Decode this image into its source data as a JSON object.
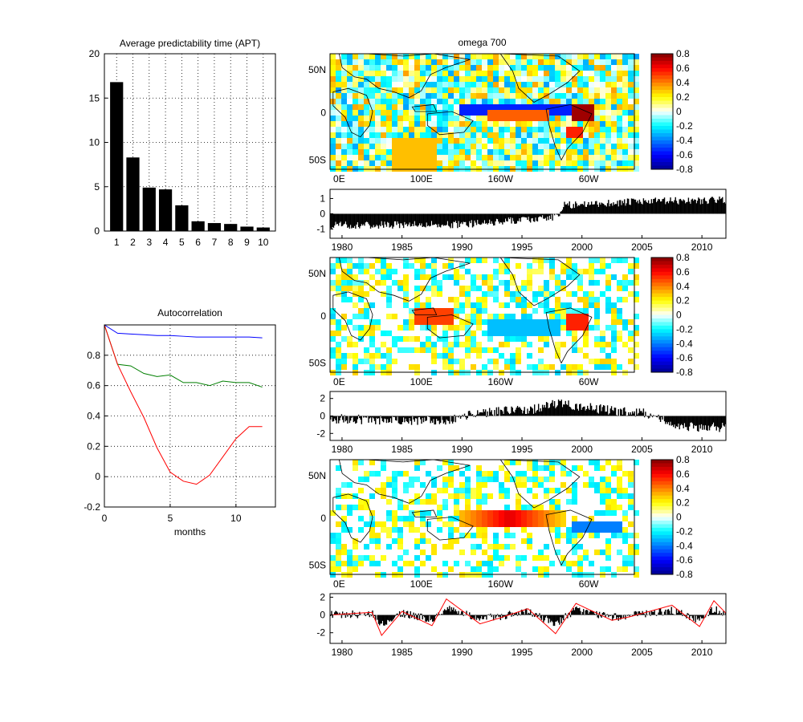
{
  "chart_data": [
    {
      "type": "bar",
      "title": "Average predictability time (APT)",
      "categories": [
        "1",
        "2",
        "3",
        "4",
        "5",
        "6",
        "7",
        "8",
        "9",
        "10"
      ],
      "values": [
        16.8,
        8.3,
        4.9,
        4.7,
        2.9,
        1.1,
        0.9,
        0.8,
        0.5,
        0.4
      ],
      "ylim": [
        0,
        20
      ],
      "yticks": [
        "0",
        "5",
        "10",
        "15",
        "20"
      ],
      "grid": true
    },
    {
      "type": "line",
      "title": "Autocorrelation",
      "xlabel": "months",
      "xlim": [
        0,
        13
      ],
      "ylim": [
        -0.2,
        1.0
      ],
      "xticks": [
        "0",
        "5",
        "10"
      ],
      "yticks": [
        "-0.2",
        "0",
        "0.2",
        "0.4",
        "0.6",
        "0.8"
      ],
      "grid": true,
      "x": [
        0,
        1,
        2,
        3,
        4,
        5,
        6,
        7,
        8,
        9,
        10,
        11,
        12
      ],
      "series": [
        {
          "color": "#0000ff",
          "values": [
            1.0,
            0.945,
            0.94,
            0.935,
            0.93,
            0.93,
            0.925,
            0.92,
            0.92,
            0.92,
            0.92,
            0.92,
            0.915
          ]
        },
        {
          "color": "#007f00",
          "values": [
            1.0,
            0.74,
            0.73,
            0.68,
            0.66,
            0.67,
            0.62,
            0.62,
            0.6,
            0.63,
            0.62,
            0.62,
            0.59
          ]
        },
        {
          "color": "#ff0000",
          "values": [
            1.0,
            0.74,
            0.56,
            0.39,
            0.19,
            0.03,
            -0.03,
            -0.05,
            0.01,
            0.13,
            0.25,
            0.33,
            0.33
          ]
        }
      ]
    },
    {
      "type": "heatmap",
      "title": "omega 700",
      "lat_ticks": [
        "50N",
        "0",
        "50S"
      ],
      "lon_ticks": [
        "0E",
        "100E",
        "160W",
        "60W"
      ],
      "colorbar_ticks": [
        "0.8",
        "0.6",
        "0.4",
        "0.2",
        "0",
        "-0.2",
        "-0.4",
        "-0.6",
        "-0.8"
      ],
      "clim": [
        -0.8,
        0.8
      ],
      "map_index": 0
    },
    {
      "type": "bar",
      "xlim": [
        1979,
        2012
      ],
      "xticks": [
        "1980",
        "1985",
        "1990",
        "1995",
        "2000",
        "2005",
        "2010"
      ],
      "ylim": [
        -1.6,
        1.6
      ],
      "yticks": [
        "1",
        "0",
        "-1"
      ],
      "description_series": "step from negative (~-0.7) to positive (~0.9) around 1998",
      "anchors_x": [
        1979,
        1990,
        1996,
        1998,
        1998.5,
        2005,
        2012
      ],
      "anchors_y": [
        -0.75,
        -0.7,
        -0.35,
        -0.2,
        0.55,
        0.8,
        0.9
      ]
    },
    {
      "type": "heatmap",
      "lat_ticks": [
        "50N",
        "0",
        "50S"
      ],
      "lon_ticks": [
        "0E",
        "100E",
        "160W",
        "60W"
      ],
      "colorbar_ticks": [
        "0.8",
        "0.6",
        "0.4",
        "0.2",
        "0",
        "-0.2",
        "-0.4",
        "-0.6",
        "-0.8"
      ],
      "clim": [
        -0.8,
        0.8
      ],
      "map_index": 1
    },
    {
      "type": "bar",
      "xlim": [
        1979,
        2012
      ],
      "xticks": [
        "1980",
        "1985",
        "1990",
        "1995",
        "2000",
        "2005",
        "2010"
      ],
      "ylim": [
        -2.8,
        2.8
      ],
      "yticks": [
        "2",
        "0",
        "-2"
      ],
      "anchors_x": [
        1979,
        1984,
        1989,
        1991,
        1996,
        1998,
        2002,
        2006,
        2008,
        2012
      ],
      "anchors_y": [
        -0.3,
        -0.5,
        -0.5,
        0.3,
        0.8,
        1.4,
        0.7,
        0.2,
        -1.2,
        -1.3
      ]
    },
    {
      "type": "heatmap",
      "lat_ticks": [
        "50N",
        "0",
        "50S"
      ],
      "lon_ticks": [
        "0E",
        "100E",
        "160W",
        "60W"
      ],
      "colorbar_ticks": [
        "0.8",
        "0.6",
        "0.4",
        "0.2",
        "0",
        "-0.2",
        "-0.4",
        "-0.6",
        "-0.8"
      ],
      "clim": [
        -0.8,
        0.8
      ],
      "map_index": 2
    },
    {
      "type": "bar",
      "xlim": [
        1979,
        2012
      ],
      "xticks": [
        "1980",
        "1985",
        "1990",
        "1995",
        "2000",
        "2005",
        "2010"
      ],
      "ylim": [
        -3.2,
        2.4
      ],
      "yticks": [
        "2",
        "0",
        "-2"
      ],
      "overlay_color": "#ff0000",
      "anchors_x": [
        1979,
        1982.5,
        1983.3,
        1985,
        1987.5,
        1988.7,
        1991.5,
        1993,
        1995.5,
        1997.8,
        1999.5,
        2002.5,
        2004,
        2007.5,
        2009.8,
        2011,
        2012
      ],
      "anchors_y": [
        0.0,
        0.3,
        -2.3,
        0.4,
        -1.2,
        1.8,
        -1.0,
        -0.4,
        0.7,
        -2.1,
        1.3,
        -0.6,
        -0.2,
        1.1,
        -1.3,
        1.6,
        0.2
      ]
    }
  ],
  "colors": {
    "bar_fill": "#000000",
    "grid": "#000000",
    "coastline": "#000000",
    "colormap": [
      "#00008f",
      "#0000ff",
      "#007fff",
      "#00ffff",
      "#ffffff",
      "#ffff00",
      "#ff7f00",
      "#ff0000",
      "#7f0000"
    ]
  }
}
